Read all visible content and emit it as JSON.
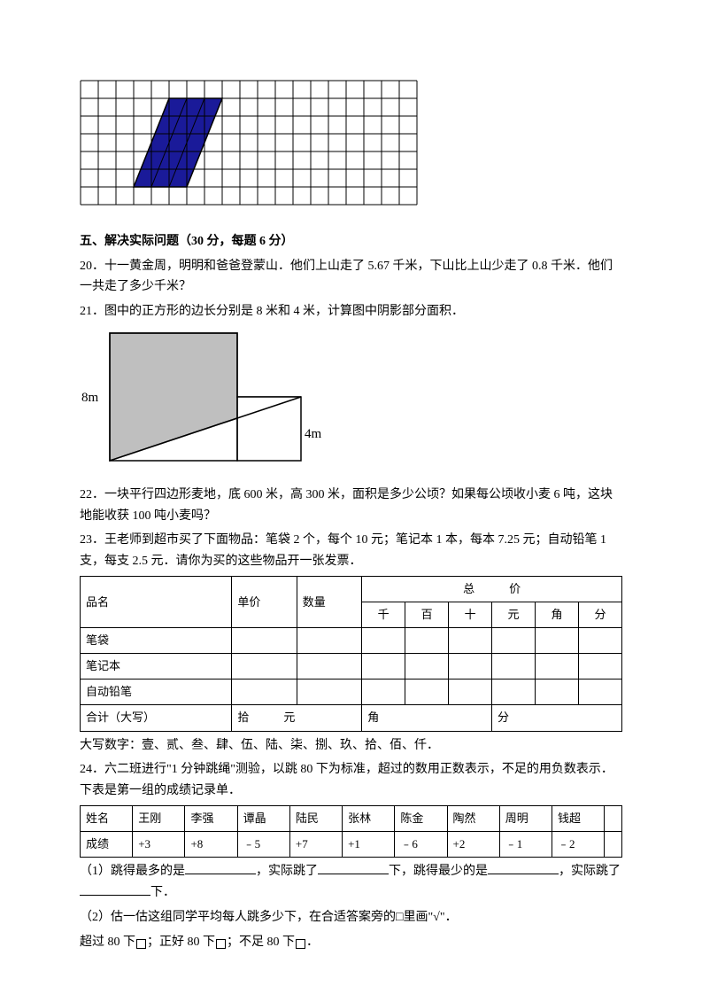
{
  "grid": {
    "cols": 19,
    "rows": 7,
    "cell_size": 20,
    "stroke": "#000000",
    "background": "#ffffff",
    "shape": {
      "fill": "#1a1a99",
      "inner_stroke": "#000000",
      "points": [
        [
          5,
          1
        ],
        [
          8,
          1
        ],
        [
          6,
          6
        ],
        [
          3,
          6
        ]
      ]
    }
  },
  "section5": {
    "title": "五、解决实际问题（30 分，每题 6 分）",
    "q20": "20．十一黄金周，明明和爸爸登蒙山．他们上山走了 5.67 千米，下山比上山少走了 0.8 千米．他们一共走了多少千米？",
    "q21": "21．图中的正方形的边长分别是 8 米和 4 米，计算图中阴影部分面积．",
    "fig21": {
      "label_left": "8m",
      "label_right": "4m",
      "big_square": 8,
      "small_square": 4,
      "scale": 18,
      "fill": "#bfbfbf",
      "stroke": "#000000"
    },
    "q22": "22．一块平行四边形麦地，底 600 米，高 300 米，面积是多少公顷？如果每公顷收小麦 6 吨，这块地能收获 100 吨小麦吗？",
    "q23": "23．王老师到超市买了下面物品：笔袋 2 个，每个 10 元；笔记本 1 本，每本 7.25 元；自动铅笔 1 支，每支 2.5 元．请你为买的这些物品开一张发票．",
    "invoice": {
      "headers": {
        "name": "品名",
        "price": "单价",
        "qty": "数量",
        "total": "总　　　价",
        "units": [
          "千",
          "百",
          "十",
          "元",
          "角",
          "分"
        ]
      },
      "rows": [
        {
          "name": "笔袋"
        },
        {
          "name": "笔记本"
        },
        {
          "name": "自动铅笔"
        }
      ],
      "footer": {
        "label": "合计（大写）",
        "shi": "拾　　　元",
        "jiao": "角",
        "fen": "分"
      }
    },
    "digits_note": "大写数字：壹、贰、叁、肆、伍、陆、柒、捌、玖、拾、佰、仟．",
    "q24_intro": "24．六二班进行\"1 分钟跳绳\"测验，以跳 80 下为标准，超过的数用正数表示，不足的用负数表示．下表是第一组的成绩记录单．",
    "scores": {
      "header_name": "姓名",
      "header_score": "成绩",
      "names": [
        "王刚",
        "李强",
        "谭晶",
        "陆民",
        "张林",
        "陈金",
        "陶然",
        "周明",
        "钱超"
      ],
      "values": [
        "+3",
        "+8",
        "﹣5",
        "+7",
        "+1",
        "﹣6",
        "+2",
        "﹣1",
        "﹣2"
      ]
    },
    "q24_1a": "（1）跳得最多的是",
    "q24_1b": "，实际跳了",
    "q24_1c": "下，跳得最少的是",
    "q24_1d": "，实际跳了",
    "q24_1e": "下．",
    "q24_2": "（2）估一估这组同学平均每人跳多少下，在合适答案旁的□里画\"√\"．",
    "q24_options": {
      "a": "超过 80 下",
      "b": "；正好 80 下",
      "c": "；不足 80 下",
      "d": "．"
    }
  }
}
